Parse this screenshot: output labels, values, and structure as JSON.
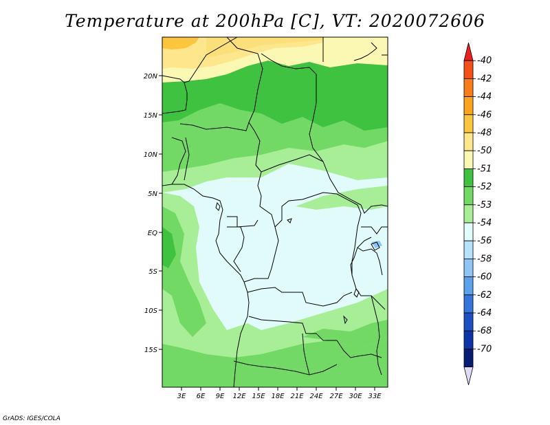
{
  "title": "Temperature at 200hPa [C], VT: 2020072606",
  "credit": "GrADS: IGES/COLA",
  "map": {
    "lat_labels": [
      "20N",
      "15N",
      "10N",
      "5N",
      "EQ",
      "5S",
      "10S",
      "15S"
    ],
    "lon_labels": [
      "3E",
      "6E",
      "9E",
      "12E",
      "15E",
      "18E",
      "21E",
      "24E",
      "27E",
      "30E",
      "33E"
    ]
  },
  "colorbar": {
    "labels": [
      "-40",
      "-42",
      "-44",
      "-46",
      "-48",
      "-50",
      "-51",
      "-52",
      "-53",
      "-54",
      "-56",
      "-58",
      "-60",
      "-62",
      "-64",
      "-68",
      "-70"
    ],
    "colors": [
      "#e8231e",
      "#f3501a",
      "#f87d17",
      "#fba51e",
      "#fbc63d",
      "#fde68b",
      "#fbf8b4",
      "#3fc240",
      "#72da64",
      "#a8ee97",
      "#e1fbfb",
      "#b4e3fb",
      "#8cc5f6",
      "#5ba2ec",
      "#3576dc",
      "#1e50c4",
      "#0c36a8",
      "#071d73",
      "#dcdcf5"
    ]
  }
}
